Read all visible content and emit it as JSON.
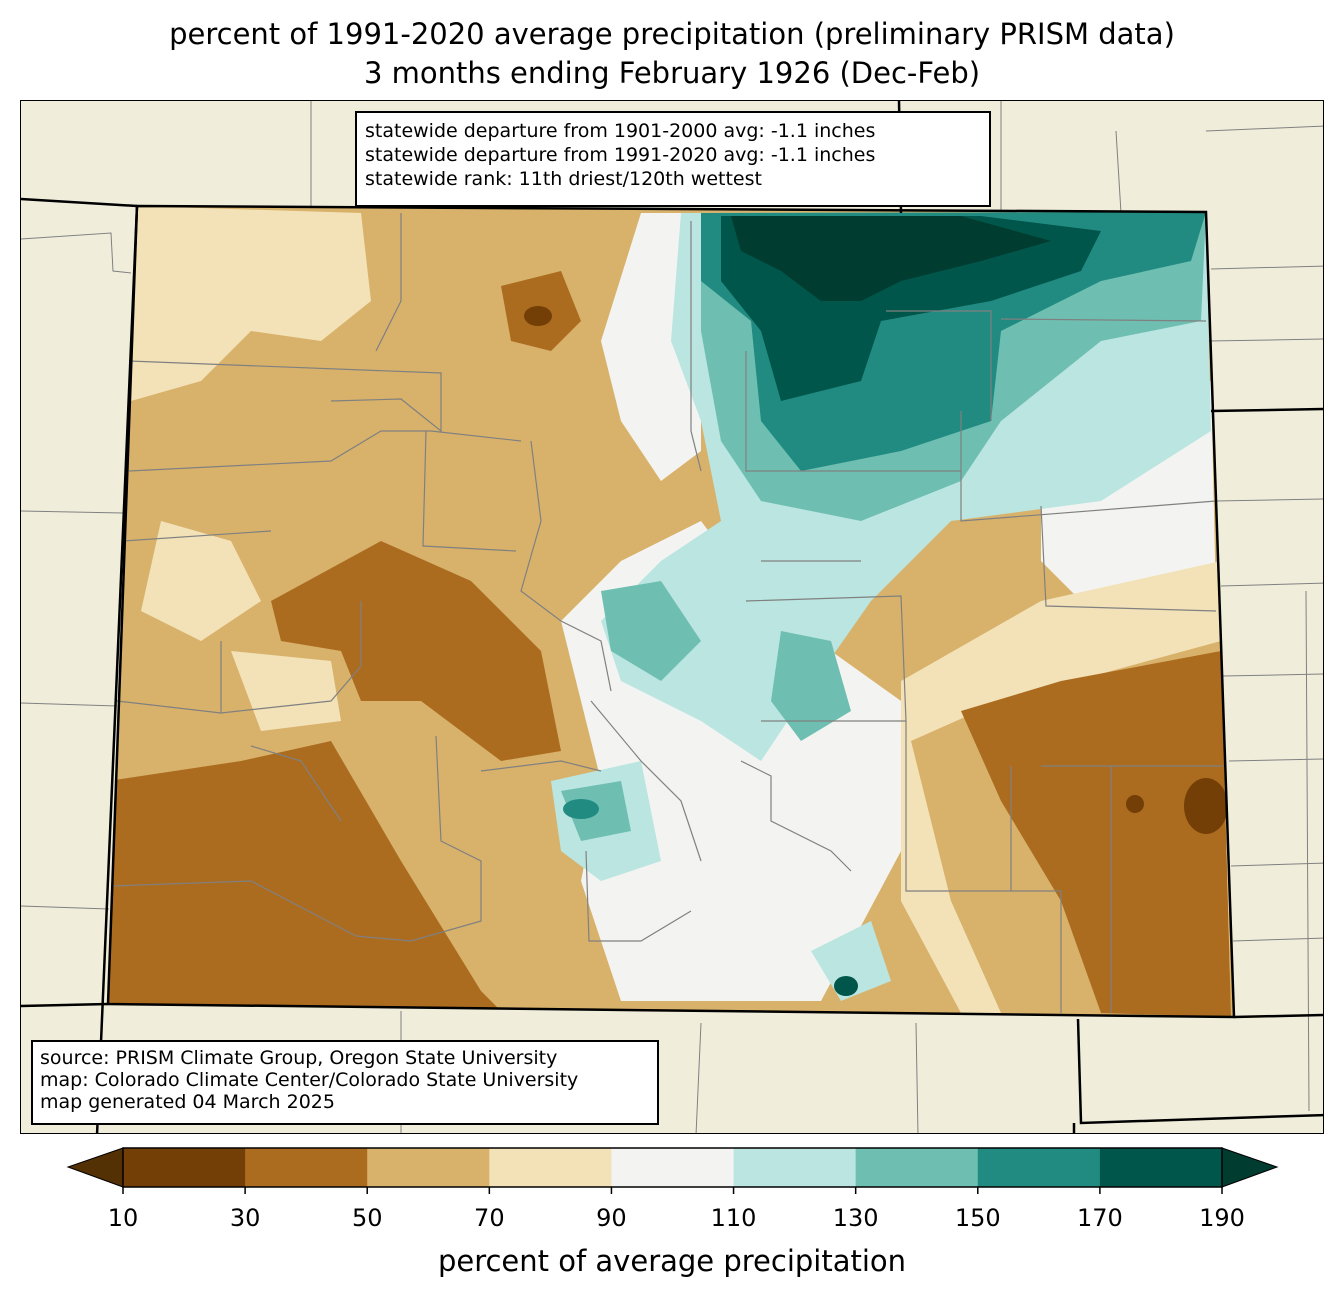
{
  "title": {
    "line1": "percent of 1991-2020 average precipitation (preliminary PRISM data)",
    "line2": "3 months ending February 1926 (Dec-Feb)"
  },
  "stats_box": {
    "line1": "statewide departure from 1901-2000 avg: -1.1 inches",
    "line2": "statewide departure from 1991-2020 avg: -1.1 inches",
    "line3": "statewide rank: 11th driest/120th wettest"
  },
  "source_box": {
    "line1": "source: PRISM Climate Group, Oregon State University",
    "line2": "map: Colorado Climate Center/Colorado State University",
    "line3": "map generated 04 March 2025"
  },
  "colorbar": {
    "label": "percent of average precipitation",
    "ticks": [
      "10",
      "30",
      "50",
      "70",
      "90",
      "110",
      "130",
      "150",
      "170",
      "190"
    ],
    "colors": {
      "under": "#543005",
      "bins": [
        "#733f07",
        "#ac6c20",
        "#d8b26b",
        "#f3e2b8",
        "#f3f4f2",
        "#bae5e0",
        "#6ebfb1",
        "#218b82",
        "#01564b"
      ],
      "over": "#003c30"
    }
  },
  "map_colors": {
    "background": "#f0eedb",
    "county_lines": "#808080",
    "state_lines": "#000000"
  }
}
